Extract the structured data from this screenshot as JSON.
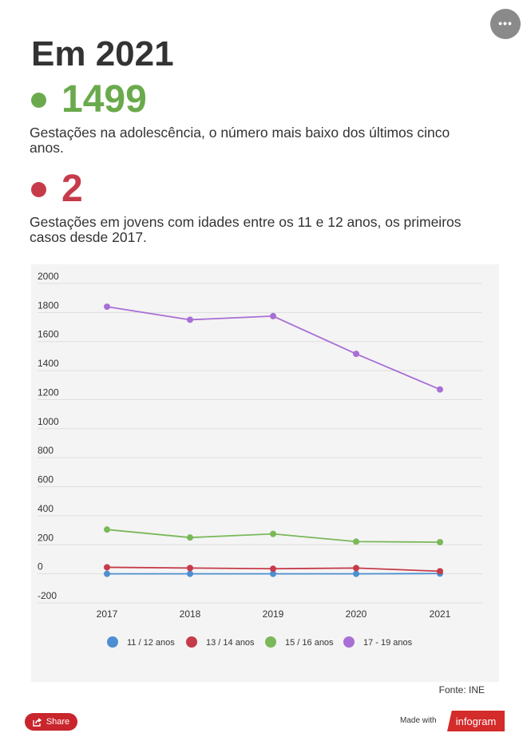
{
  "header": {
    "title": "Em 2021"
  },
  "stats": [
    {
      "value": "1499",
      "color": "#6aaa4c",
      "text": "Gestações na adolescência, o número mais baixo dos últimos cinco anos."
    },
    {
      "value": "2",
      "color": "#c63b4a",
      "text": "Gestações em jovens com idades entre os 11 e 12 anos, os primeiros casos desde 2017."
    }
  ],
  "chart_data": {
    "type": "line",
    "categories": [
      "2017",
      "2018",
      "2019",
      "2020",
      "2021"
    ],
    "y_ticks": [
      "2000",
      "1800",
      "1600",
      "1400",
      "1200",
      "1000",
      "800",
      "600",
      "400",
      "200",
      "0",
      "-200"
    ],
    "ylim": [
      -200,
      2000
    ],
    "grid": true,
    "legend_position": "bottom",
    "series": [
      {
        "name": "11 / 12 anos",
        "color": "#4d8fd1",
        "values": [
          0,
          0,
          0,
          0,
          2
        ]
      },
      {
        "name": "13 / 14 anos",
        "color": "#c63b4a",
        "values": [
          45,
          40,
          35,
          40,
          18
        ]
      },
      {
        "name": "15 / 16 anos",
        "color": "#7ab85a",
        "values": [
          305,
          250,
          275,
          222,
          218
        ]
      },
      {
        "name": "17 - 19 anos",
        "color": "#a86fd6",
        "values": [
          1840,
          1750,
          1775,
          1515,
          1270
        ]
      }
    ]
  },
  "footer": {
    "source": "Fonte: INE",
    "share_label": "Share",
    "made_with": "Made with",
    "brand": "infogram",
    "more_icon": "•••"
  }
}
